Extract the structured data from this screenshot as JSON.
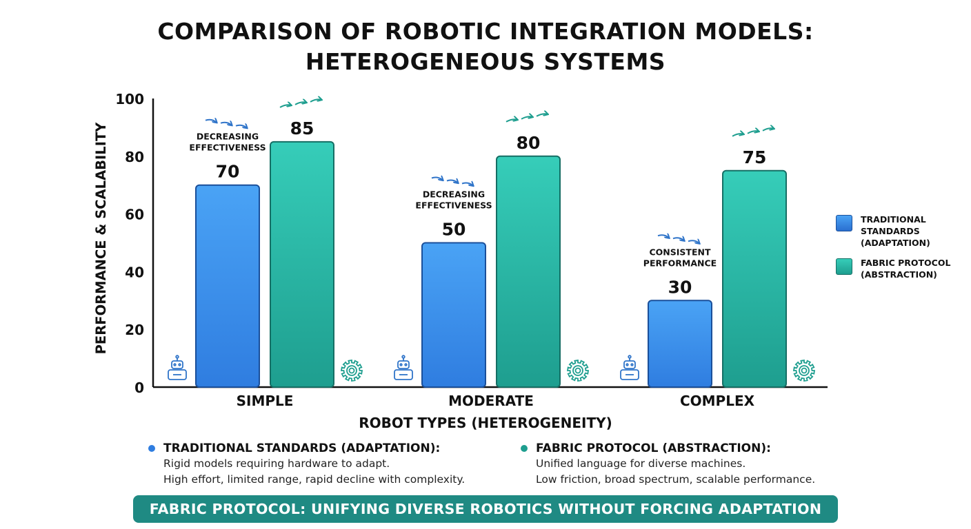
{
  "colors": {
    "traditional": "#2f7de0",
    "traditional_top": "#4aa3f5",
    "fabric": "#1e9e8f",
    "fabric_top": "#36cdb9",
    "arrow_blue": "#2f74c9",
    "arrow_teal": "#1e9e8f",
    "banner": "#1f8a83"
  },
  "chart_data": {
    "type": "bar",
    "title": "COMPARISON OF ROBOTIC INTEGRATION MODELS:\nHETEROGENEOUS SYSTEMS",
    "xlabel": "ROBOT TYPES (HETEROGENEITY)",
    "ylabel": "PERFORMANCE & SCALABILITY",
    "ylim": [
      0,
      100
    ],
    "yticks": [
      "0",
      "20",
      "40",
      "60",
      "80",
      "100"
    ],
    "categories": [
      "SIMPLE",
      "MODERATE",
      "COMPLEX"
    ],
    "series": [
      {
        "name": "TRADITIONAL STANDARDS (ADAPTATION)",
        "values": [
          70,
          50,
          30
        ]
      },
      {
        "name": "FABRIC PROTOCOL (ABSTRACTION)",
        "values": [
          85,
          80,
          75
        ]
      }
    ],
    "annotations": [
      {
        "category": "SIMPLE",
        "text": "DECREASING\nEFFECTIVENESS"
      },
      {
        "category": "MODERATE",
        "text": "DECREASING\nEFFECTIVENESS"
      },
      {
        "category": "COMPLEX",
        "text": "CONSISTENT\nPERFORMANCE"
      }
    ],
    "grid": false,
    "legend_position": "right"
  },
  "legend": {
    "traditional": "TRADITIONAL\nSTANDARDS\n(ADAPTATION)",
    "fabric": "FABRIC PROTOCOL\n(ABSTRACTION)"
  },
  "descriptions": {
    "traditional": {
      "heading": "TRADITIONAL STANDARDS (ADAPTATION):",
      "line1": "Rigid models requiring hardware to adapt.",
      "line2": "High effort, limited range, rapid decline with complexity."
    },
    "fabric": {
      "heading": "FABRIC PROTOCOL (ABSTRACTION):",
      "line1": "Unified language for diverse machines.",
      "line2": "Low friction, broad spectrum, scalable performance."
    }
  },
  "icons": {
    "robot": "robot-icon",
    "gear": "gear-icon",
    "arrows": "arrow-trend-icon"
  },
  "banner": "FABRIC PROTOCOL: UNIFYING DIVERSE ROBOTICS WITHOUT FORCING ADAPTATION"
}
